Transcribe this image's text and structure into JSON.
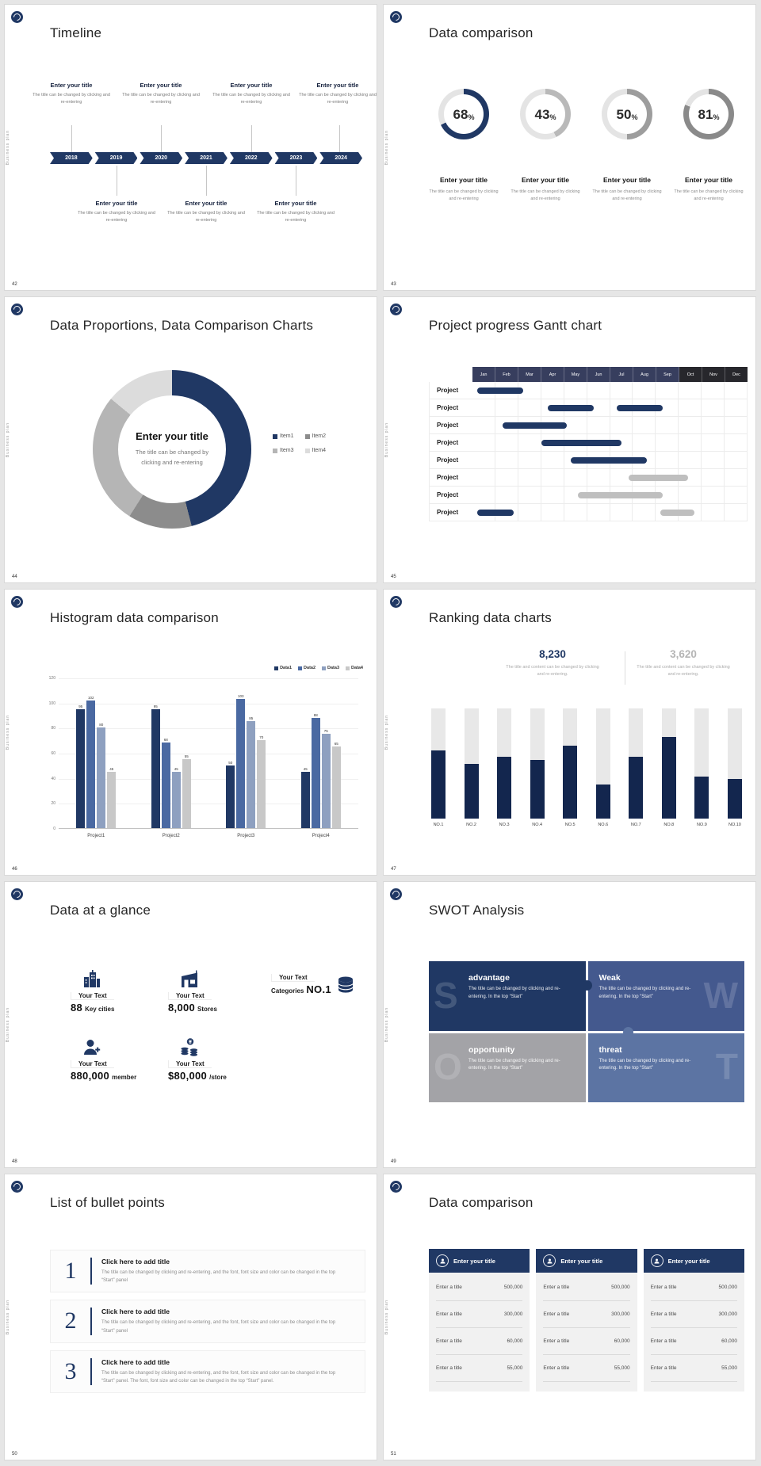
{
  "common": {
    "side_label": "Business plan",
    "small_body": "The title can be changed by clicking and re-entering"
  },
  "slides": {
    "s42": {
      "number": "42",
      "title": "Timeline",
      "years": [
        "2018",
        "2019",
        "2020",
        "2021",
        "2022",
        "2023",
        "2024"
      ],
      "item_title": "Enter your title",
      "item_body": "The title can be changed by clicking and re-entering"
    },
    "s43": {
      "number": "43",
      "title": "Data comparison",
      "stat_title": "Enter your title",
      "stat_body": "The title can be changed by clicking and re-entering"
    },
    "s44": {
      "number": "44",
      "title": "Data Proportions, Data Comparison Charts",
      "center_title": "Enter your title",
      "center_body": "The title can be changed by clicking and re-entering"
    },
    "s45": {
      "number": "45",
      "title": "Project progress Gantt chart"
    },
    "s46": {
      "number": "46",
      "title": "Histogram data comparison"
    },
    "s47": {
      "number": "47",
      "title": "Ranking data charts",
      "stat1": {
        "value": "8,230",
        "color": "#203864",
        "body": "The title and content can be changed by clicking and re-entering."
      },
      "stat2": {
        "value": "3,620",
        "color": "#b5b5b5",
        "body": "The title and content can be changed by clicking and re-entering."
      }
    },
    "s48": {
      "number": "48",
      "title": "Data at a glance",
      "items": [
        {
          "label": "Your Text",
          "value": "88",
          "unit": "Key cities",
          "icon": "building"
        },
        {
          "label": "Your Text",
          "value": "8,000",
          "unit": "Stores",
          "icon": "store"
        },
        {
          "label": "Your Text",
          "prefix": "Categories",
          "value": "NO.1",
          "icon": "database"
        },
        {
          "label": "Your Text",
          "value": "880,000",
          "unit": "member",
          "icon": "member"
        },
        {
          "label": "Your Text",
          "value": "$80,000",
          "unit": "/store",
          "icon": "coins"
        }
      ]
    },
    "s49": {
      "number": "49",
      "title": "SWOT Analysis",
      "quadrants": [
        {
          "letter": "S",
          "heading": "advantage",
          "body": "The title can be changed by clicking and re-entering. In the top “Start”",
          "color": "#203864"
        },
        {
          "letter": "W",
          "heading": "Weak",
          "body": "The title can be changed by clicking and re-entering. In the top “Start”",
          "color": "#44598e"
        },
        {
          "letter": "O",
          "heading": "opportunity",
          "body": "The title can be changed by clicking and re-entering. In the top “Start”",
          "color": "#a3a3a7"
        },
        {
          "letter": "T",
          "heading": "threat",
          "body": "The title can be changed by clicking and re-entering. In the top “Start”",
          "color": "#5c74a3"
        }
      ]
    },
    "s50": {
      "number": "50",
      "title": "List of bullet points",
      "items": [
        {
          "num": "1",
          "heading": "Click here to add title",
          "body": "The title can be changed by clicking and re-entering, and the font, font size and color can be changed in the top “Start” panel"
        },
        {
          "num": "2",
          "heading": "Click here to add title",
          "body": "The title can be changed by clicking and re-entering, and the font, font size and color can be changed in the top “Start” panel"
        },
        {
          "num": "3",
          "heading": "Click here to add title",
          "body": "The title can be changed by clicking and re-entering, and the font, font size and color can be changed in the top “Start” panel. The font, font size and color can be changed in the top “Start” panel."
        }
      ]
    },
    "s51": {
      "number": "51",
      "title": "Data comparison",
      "cards": [
        {
          "header": "Enter your title",
          "rows": [
            [
              "Enter a title",
              "500,000"
            ],
            [
              "Enter a title",
              "300,000"
            ],
            [
              "Enter a title",
              "60,000"
            ],
            [
              "Enter a title",
              "55,000"
            ]
          ]
        },
        {
          "header": "Enter your title",
          "rows": [
            [
              "Enter a title",
              "500,000"
            ],
            [
              "Enter a title",
              "300,000"
            ],
            [
              "Enter a title",
              "60,000"
            ],
            [
              "Enter a title",
              "55,000"
            ]
          ]
        },
        {
          "header": "Enter your title",
          "rows": [
            [
              "Enter a title",
              "500,000"
            ],
            [
              "Enter a title",
              "300,000"
            ],
            [
              "Enter a title",
              "60,000"
            ],
            [
              "Enter a title",
              "55,000"
            ]
          ]
        }
      ]
    }
  },
  "chart_data": [
    {
      "id": "percent-rings",
      "type": "pie",
      "title": "Data comparison",
      "suffix": "%",
      "track_color": "#e4e4e4",
      "rings": [
        {
          "value": 68,
          "color": "#203864"
        },
        {
          "value": 43,
          "color": "#b9b9b9"
        },
        {
          "value": 50,
          "color": "#9d9d9d"
        },
        {
          "value": 81,
          "color": "#8a8a8a"
        }
      ]
    },
    {
      "id": "donut-proportions",
      "type": "pie",
      "title": "Data Proportions, Data Comparison Charts",
      "labels": [
        "Item1",
        "Item2",
        "Item3",
        "Item4"
      ],
      "values": [
        46,
        13,
        27,
        14
      ],
      "colors": [
        "#203864",
        "#8c8c8c",
        "#b5b5b5",
        "#dcdcdc"
      ],
      "legend_position": "right"
    },
    {
      "id": "gantt",
      "type": "table",
      "title": "Project progress Gantt chart",
      "columns": [
        "Jan",
        "Feb",
        "Mar",
        "Apr",
        "May",
        "Jun",
        "Jul",
        "Aug",
        "Sep",
        "Oct",
        "Nov",
        "Dec"
      ],
      "row_label": "Project",
      "row_count": 8,
      "bar_colors": {
        "primary": "#203864",
        "secondary": "#bfbfbf"
      },
      "bars": [
        {
          "row": 0,
          "start": 0.2,
          "end": 2.2,
          "color": "primary"
        },
        {
          "row": 1,
          "start": 3.3,
          "end": 5.3,
          "color": "primary"
        },
        {
          "row": 1,
          "start": 6.3,
          "end": 8.3,
          "color": "primary"
        },
        {
          "row": 2,
          "start": 1.3,
          "end": 4.1,
          "color": "primary"
        },
        {
          "row": 3,
          "start": 3.0,
          "end": 6.5,
          "color": "primary"
        },
        {
          "row": 4,
          "start": 4.3,
          "end": 7.6,
          "color": "primary"
        },
        {
          "row": 5,
          "start": 6.8,
          "end": 9.4,
          "color": "secondary"
        },
        {
          "row": 6,
          "start": 4.6,
          "end": 8.3,
          "color": "secondary"
        },
        {
          "row": 7,
          "start": 0.2,
          "end": 1.8,
          "color": "primary"
        },
        {
          "row": 7,
          "start": 8.2,
          "end": 9.7,
          "color": "secondary"
        }
      ]
    },
    {
      "id": "histogram",
      "type": "bar",
      "title": "Histogram data comparison",
      "categories": [
        "Project1",
        "Project2",
        "Project3",
        "Project4"
      ],
      "series": [
        {
          "name": "Data1",
          "color": "#203864",
          "values": [
            95,
            95,
            50,
            45
          ]
        },
        {
          "name": "Data2",
          "color": "#4a69a2",
          "values": [
            102,
            68,
            103,
            88
          ]
        },
        {
          "name": "Data3",
          "color": "#8ea0c0",
          "values": [
            80,
            45,
            85,
            75
          ]
        },
        {
          "name": "Data4",
          "color": "#c8c8c8",
          "values": [
            45,
            55,
            70,
            65
          ]
        }
      ],
      "ylim": [
        0,
        120
      ],
      "yticks": [
        0,
        20,
        40,
        60,
        80,
        100,
        120
      ],
      "legend_position": "top-right"
    },
    {
      "id": "ranking",
      "type": "bar",
      "title": "Ranking data charts",
      "categories": [
        "NO.1",
        "NO.2",
        "NO.3",
        "NO.4",
        "NO.5",
        "NO.6",
        "NO.7",
        "NO.8",
        "NO.9",
        "NO.10"
      ],
      "values": [
        62,
        50,
        56,
        53,
        66,
        31,
        56,
        74,
        38,
        36
      ],
      "max": 100,
      "bar_color": "#13264e",
      "track_color": "#e8e8e8"
    }
  ]
}
